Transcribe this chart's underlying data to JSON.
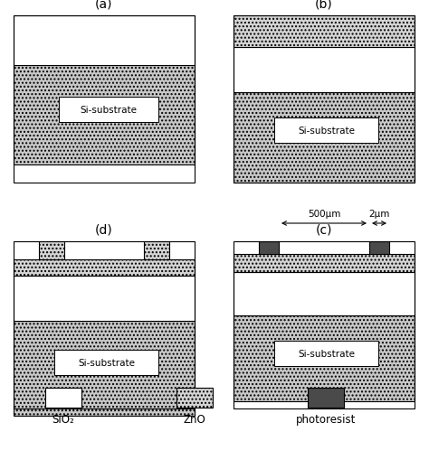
{
  "colors": {
    "sio2": "#ffffff",
    "zno": "#d4d4d4",
    "substrate": "#c8c8c8",
    "photoresist": "#4a4a4a",
    "border": "#000000",
    "white": "#ffffff",
    "background": "#ffffff"
  },
  "legend_labels": [
    "SiO₂",
    "ZnO",
    "photoresist"
  ],
  "annotation_500": "500μm",
  "annotation_2": "2μm"
}
